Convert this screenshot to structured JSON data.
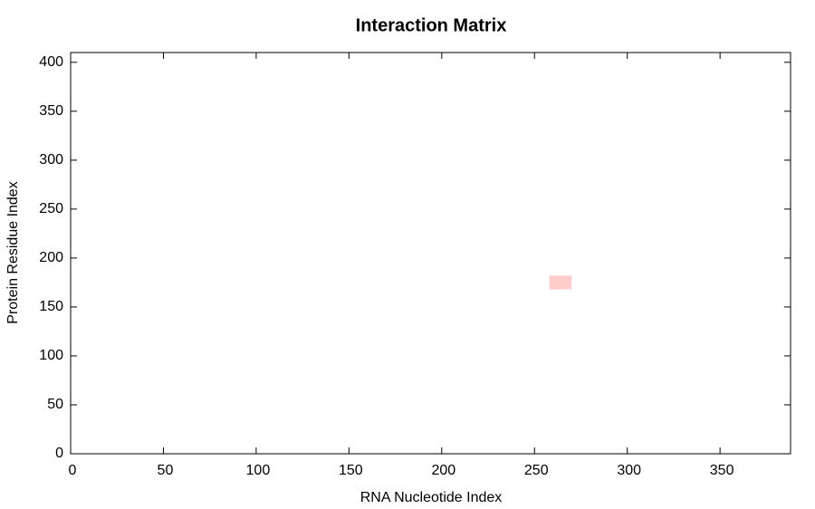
{
  "chart_data": {
    "type": "heatmap",
    "title": "Interaction Matrix",
    "xlabel": "RNA Nucleotide Index",
    "ylabel": "Protein Residue Index",
    "xlim": [
      0,
      388
    ],
    "ylim": [
      0,
      410
    ],
    "xticks": [
      0,
      50,
      100,
      150,
      200,
      250,
      300,
      350
    ],
    "yticks": [
      0,
      50,
      100,
      150,
      200,
      250,
      300,
      350,
      400
    ],
    "cells": [
      {
        "x": [
          258,
          270
        ],
        "y": [
          168,
          182
        ]
      }
    ],
    "color": "#ffcccc"
  }
}
